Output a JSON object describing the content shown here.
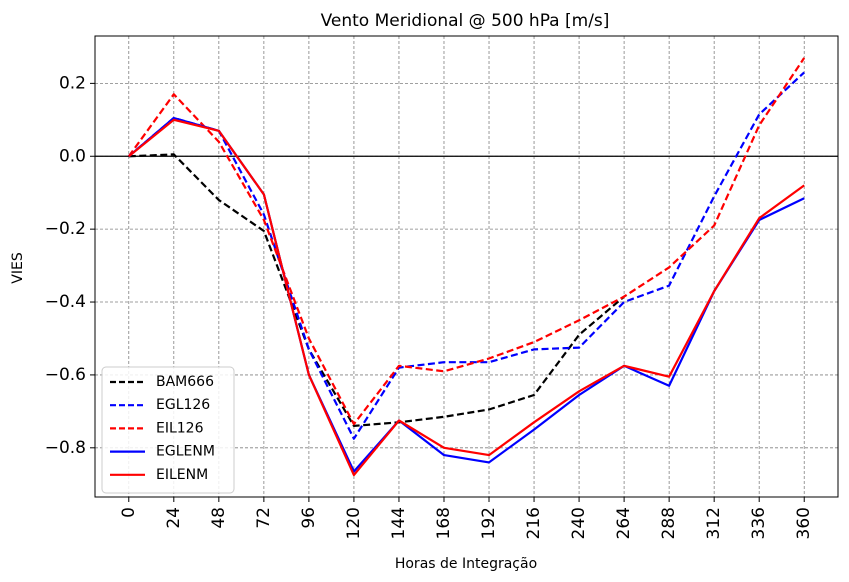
{
  "chart_data": {
    "type": "line",
    "title": "Vento Meridional @ 500 hPa [m/s]",
    "xlabel": "Horas de Integração",
    "ylabel": "VIES",
    "x": [
      0,
      24,
      48,
      72,
      96,
      120,
      144,
      168,
      192,
      216,
      240,
      264,
      288,
      312,
      336,
      360
    ],
    "x_tick_labels": [
      "0",
      "24",
      "48",
      "72",
      "96",
      "120",
      "144",
      "168",
      "192",
      "216",
      "240",
      "264",
      "288",
      "312",
      "336",
      "360"
    ],
    "y_tick_values": [
      0.2,
      0.0,
      -0.2,
      -0.4,
      -0.6,
      -0.8
    ],
    "y_tick_labels": [
      "0.2",
      "0.0",
      "−0.2",
      "−0.4",
      "−0.6",
      "−0.8"
    ],
    "xlim": [
      -18,
      378
    ],
    "ylim": [
      -0.935,
      0.33
    ],
    "grid": true,
    "zero_line": true,
    "legend_position": "lower-left",
    "series": [
      {
        "name": "BAM666",
        "color": "#000000",
        "dash": true,
        "values": [
          0.0,
          0.005,
          -0.12,
          -0.205,
          -0.53,
          -0.74,
          -0.73,
          -0.715,
          -0.695,
          -0.655,
          -0.49,
          -0.385,
          null,
          null,
          null,
          null
        ]
      },
      {
        "name": "EGL126",
        "color": "#0000ff",
        "dash": true,
        "values": [
          0.0,
          0.105,
          0.07,
          -0.16,
          -0.53,
          -0.775,
          -0.58,
          -0.565,
          -0.565,
          -0.53,
          -0.525,
          -0.4,
          -0.355,
          -0.11,
          0.115,
          0.23
        ]
      },
      {
        "name": "EIL126",
        "color": "#ff0000",
        "dash": true,
        "values": [
          0.0,
          0.17,
          0.04,
          -0.175,
          -0.5,
          -0.735,
          -0.575,
          -0.59,
          -0.555,
          -0.51,
          -0.45,
          -0.385,
          -0.305,
          -0.19,
          0.085,
          0.27
        ]
      },
      {
        "name": "EGLENM",
        "color": "#0000ff",
        "dash": false,
        "values": [
          0.0,
          0.105,
          0.07,
          -0.105,
          -0.6,
          -0.865,
          -0.725,
          -0.82,
          -0.84,
          -0.75,
          -0.655,
          -0.575,
          -0.63,
          -0.37,
          -0.175,
          -0.115
        ]
      },
      {
        "name": "EILENM",
        "color": "#ff0000",
        "dash": false,
        "values": [
          0.0,
          0.1,
          0.07,
          -0.105,
          -0.6,
          -0.875,
          -0.725,
          -0.8,
          -0.82,
          -0.73,
          -0.645,
          -0.575,
          -0.605,
          -0.37,
          -0.17,
          -0.08
        ]
      }
    ]
  }
}
